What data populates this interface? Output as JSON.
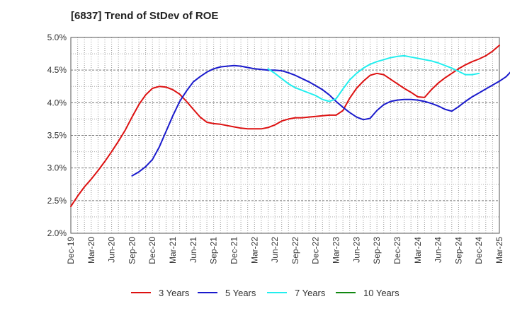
{
  "chart_data": {
    "type": "line",
    "title": "[6837]  Trend of StDev of ROE",
    "xlabel": "",
    "ylabel": "",
    "x_ticks": [
      "Dec-19",
      "Mar-20",
      "Jun-20",
      "Sep-20",
      "Dec-20",
      "Mar-21",
      "Jun-21",
      "Sep-21",
      "Dec-21",
      "Mar-22",
      "Jun-22",
      "Sep-22",
      "Dec-22",
      "Mar-23",
      "Jun-23",
      "Sep-23",
      "Dec-23",
      "Mar-24",
      "Jun-24",
      "Sep-24",
      "Dec-24",
      "Mar-25"
    ],
    "y_ticks": [
      "2.0%",
      "2.5%",
      "3.0%",
      "3.5%",
      "4.0%",
      "4.5%",
      "5.0%"
    ],
    "ylim": [
      2.0,
      5.0
    ],
    "y_unit": "%",
    "grid": true,
    "legend_position": "bottom",
    "series": [
      {
        "name": "3 Years",
        "color": "#dd1111",
        "start_index": 0,
        "values": [
          2.41,
          2.57,
          2.71,
          2.83,
          2.96,
          3.1,
          3.25,
          3.41,
          3.58,
          3.78,
          3.97,
          4.12,
          4.22,
          4.25,
          4.24,
          4.2,
          4.13,
          4.02,
          3.9,
          3.78,
          3.7,
          3.68,
          3.67,
          3.65,
          3.63,
          3.61,
          3.6,
          3.6,
          3.6,
          3.62,
          3.66,
          3.72,
          3.75,
          3.77,
          3.77,
          3.78,
          3.79,
          3.8,
          3.81,
          3.81,
          3.88,
          4.07,
          4.22,
          4.33,
          4.42,
          4.45,
          4.43,
          4.36,
          4.29,
          4.22,
          4.16,
          4.09,
          4.08,
          4.2,
          4.3,
          4.38,
          4.45,
          4.52,
          4.58,
          4.63,
          4.67,
          4.72,
          4.79,
          4.88
        ]
      },
      {
        "name": "5 Years",
        "color": "#1a1acc",
        "start_index": 9,
        "values": [
          2.88,
          2.94,
          3.02,
          3.13,
          3.32,
          3.56,
          3.8,
          4.02,
          4.18,
          4.32,
          4.4,
          4.47,
          4.52,
          4.55,
          4.56,
          4.57,
          4.56,
          4.54,
          4.52,
          4.51,
          4.5,
          4.5,
          4.49,
          4.46,
          4.42,
          4.37,
          4.32,
          4.26,
          4.2,
          4.12,
          4.02,
          3.93,
          3.85,
          3.78,
          3.74,
          3.76,
          3.88,
          3.97,
          4.02,
          4.04,
          4.05,
          4.05,
          4.04,
          4.02,
          3.99,
          3.95,
          3.9,
          3.87,
          3.94,
          4.02,
          4.09,
          4.15,
          4.21,
          4.27,
          4.33,
          4.4,
          4.51,
          4.64
        ]
      },
      {
        "name": "7 Years",
        "color": "#22eeee",
        "start_index": 29,
        "values": [
          4.52,
          4.45,
          4.37,
          4.29,
          4.23,
          4.19,
          4.15,
          4.11,
          4.05,
          4.02,
          4.06,
          4.21,
          4.35,
          4.45,
          4.53,
          4.59,
          4.63,
          4.66,
          4.69,
          4.71,
          4.72,
          4.7,
          4.68,
          4.66,
          4.64,
          4.61,
          4.57,
          4.53,
          4.48,
          4.43,
          4.43,
          4.45
        ]
      },
      {
        "name": "10 Years",
        "color": "#118811",
        "start_index": 0,
        "values": []
      }
    ]
  }
}
